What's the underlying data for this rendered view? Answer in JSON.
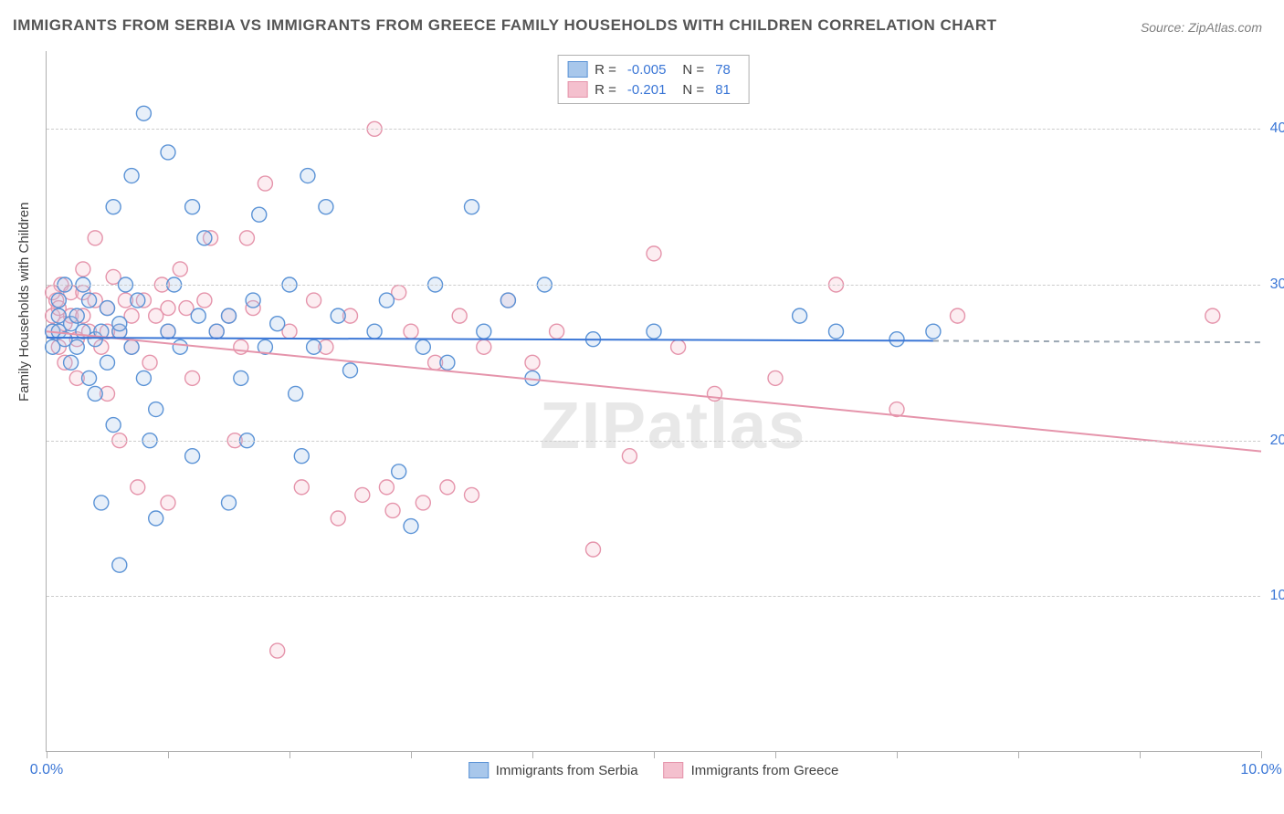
{
  "title": "IMMIGRANTS FROM SERBIA VS IMMIGRANTS FROM GREECE FAMILY HOUSEHOLDS WITH CHILDREN CORRELATION CHART",
  "source": "Source: ZipAtlas.com",
  "watermark": "ZIPatlas",
  "y_axis_title": "Family Households with Children",
  "chart": {
    "type": "scatter",
    "background_color": "#ffffff",
    "grid_color": "#cccccc",
    "axis_color": "#b0b0b0",
    "tick_label_color": "#3a76d6",
    "text_color": "#404040",
    "xlim": [
      0,
      10
    ],
    "ylim": [
      0,
      45
    ],
    "xticks": [
      0,
      1,
      2,
      3,
      4,
      5,
      6,
      7,
      8,
      9,
      10
    ],
    "xtick_labels_shown": {
      "0": "0.0%",
      "10": "10.0%"
    },
    "yticks": [
      10,
      20,
      30,
      40
    ],
    "ytick_labels": [
      "10.0%",
      "20.0%",
      "30.0%",
      "40.0%"
    ],
    "marker_radius": 8,
    "marker_fill_opacity": 0.28,
    "marker_stroke_width": 1.4,
    "line_width": 2
  },
  "series": {
    "serbia": {
      "label": "Immigrants from Serbia",
      "color_stroke": "#5b93d6",
      "color_fill": "#a8c7eb",
      "R": "-0.005",
      "N": "78",
      "regression": {
        "x1": 0,
        "y1": 26.6,
        "x2": 7.3,
        "y2": 26.4,
        "dash_x2": 10,
        "dash_y2": 26.3
      },
      "points": [
        [
          0.05,
          27
        ],
        [
          0.05,
          26
        ],
        [
          0.1,
          27
        ],
        [
          0.1,
          28
        ],
        [
          0.1,
          29
        ],
        [
          0.15,
          30
        ],
        [
          0.15,
          26.5
        ],
        [
          0.2,
          25
        ],
        [
          0.2,
          27.5
        ],
        [
          0.25,
          28
        ],
        [
          0.25,
          26
        ],
        [
          0.3,
          30
        ],
        [
          0.3,
          27
        ],
        [
          0.35,
          24
        ],
        [
          0.35,
          29
        ],
        [
          0.4,
          26.5
        ],
        [
          0.4,
          23
        ],
        [
          0.45,
          27
        ],
        [
          0.5,
          28.5
        ],
        [
          0.5,
          25
        ],
        [
          0.55,
          35
        ],
        [
          0.55,
          21
        ],
        [
          0.6,
          27
        ],
        [
          0.6,
          12
        ],
        [
          0.65,
          30
        ],
        [
          0.7,
          37
        ],
        [
          0.7,
          26
        ],
        [
          0.75,
          29
        ],
        [
          0.8,
          24
        ],
        [
          0.8,
          41
        ],
        [
          0.85,
          20
        ],
        [
          0.9,
          15
        ],
        [
          0.9,
          22
        ],
        [
          1.0,
          27
        ],
        [
          1.0,
          38.5
        ],
        [
          1.05,
          30
        ],
        [
          1.1,
          26
        ],
        [
          1.2,
          35
        ],
        [
          1.2,
          19
        ],
        [
          1.25,
          28
        ],
        [
          1.3,
          33
        ],
        [
          1.4,
          27
        ],
        [
          1.5,
          16
        ],
        [
          1.5,
          28
        ],
        [
          1.6,
          24
        ],
        [
          1.65,
          20
        ],
        [
          1.7,
          29
        ],
        [
          1.75,
          34.5
        ],
        [
          1.8,
          26
        ],
        [
          1.9,
          27.5
        ],
        [
          2.0,
          30
        ],
        [
          2.05,
          23
        ],
        [
          2.1,
          19
        ],
        [
          2.15,
          37
        ],
        [
          2.2,
          26
        ],
        [
          2.3,
          35
        ],
        [
          2.4,
          28
        ],
        [
          2.5,
          24.5
        ],
        [
          2.7,
          27
        ],
        [
          2.8,
          29
        ],
        [
          2.9,
          18
        ],
        [
          3.0,
          14.5
        ],
        [
          3.1,
          26
        ],
        [
          3.2,
          30
        ],
        [
          3.3,
          25
        ],
        [
          3.5,
          35
        ],
        [
          3.6,
          27
        ],
        [
          3.8,
          29
        ],
        [
          4.0,
          24
        ],
        [
          4.1,
          30
        ],
        [
          4.5,
          26.5
        ],
        [
          5.0,
          27
        ],
        [
          6.2,
          28
        ],
        [
          6.5,
          27
        ],
        [
          7.0,
          26.5
        ],
        [
          7.3,
          27
        ],
        [
          0.6,
          27.5
        ],
        [
          0.45,
          16
        ]
      ]
    },
    "greece": {
      "label": "Immigrants from Greece",
      "color_stroke": "#e594ab",
      "color_fill": "#f4c0ce",
      "R": "-0.201",
      "N": "81",
      "regression": {
        "x1": 0,
        "y1": 27.0,
        "x2": 10,
        "y2": 19.3
      },
      "points": [
        [
          0.05,
          28
        ],
        [
          0.05,
          27
        ],
        [
          0.08,
          29
        ],
        [
          0.1,
          26
        ],
        [
          0.1,
          28.5
        ],
        [
          0.12,
          30
        ],
        [
          0.15,
          27.5
        ],
        [
          0.15,
          25
        ],
        [
          0.2,
          28
        ],
        [
          0.2,
          29.5
        ],
        [
          0.25,
          26.5
        ],
        [
          0.25,
          24
        ],
        [
          0.3,
          31
        ],
        [
          0.3,
          28
        ],
        [
          0.35,
          27
        ],
        [
          0.4,
          29
        ],
        [
          0.4,
          33
        ],
        [
          0.45,
          26
        ],
        [
          0.5,
          23
        ],
        [
          0.5,
          28.5
        ],
        [
          0.55,
          30.5
        ],
        [
          0.6,
          27
        ],
        [
          0.6,
          20
        ],
        [
          0.65,
          29
        ],
        [
          0.7,
          26
        ],
        [
          0.7,
          28
        ],
        [
          0.75,
          17
        ],
        [
          0.8,
          29
        ],
        [
          0.85,
          25
        ],
        [
          0.9,
          28
        ],
        [
          0.95,
          30
        ],
        [
          1.0,
          27
        ],
        [
          1.0,
          16
        ],
        [
          1.1,
          31
        ],
        [
          1.15,
          28.5
        ],
        [
          1.2,
          24
        ],
        [
          1.3,
          29
        ],
        [
          1.35,
          33
        ],
        [
          1.4,
          27
        ],
        [
          1.5,
          28
        ],
        [
          1.55,
          20
        ],
        [
          1.6,
          26
        ],
        [
          1.65,
          33
        ],
        [
          1.7,
          28.5
        ],
        [
          1.8,
          36.5
        ],
        [
          1.9,
          6.5
        ],
        [
          2.0,
          27
        ],
        [
          2.1,
          17
        ],
        [
          2.2,
          29
        ],
        [
          2.3,
          26
        ],
        [
          2.4,
          15
        ],
        [
          2.5,
          28
        ],
        [
          2.6,
          16.5
        ],
        [
          2.7,
          40
        ],
        [
          2.8,
          17
        ],
        [
          2.85,
          15.5
        ],
        [
          2.9,
          29.5
        ],
        [
          3.0,
          27
        ],
        [
          3.1,
          16
        ],
        [
          3.2,
          25
        ],
        [
          3.3,
          17
        ],
        [
          3.4,
          28
        ],
        [
          3.5,
          16.5
        ],
        [
          3.6,
          26
        ],
        [
          3.8,
          29
        ],
        [
          4.0,
          25
        ],
        [
          4.2,
          27
        ],
        [
          4.5,
          13
        ],
        [
          4.8,
          19
        ],
        [
          5.0,
          32
        ],
        [
          5.2,
          26
        ],
        [
          5.5,
          23
        ],
        [
          6.0,
          24
        ],
        [
          6.5,
          30
        ],
        [
          7.0,
          22
        ],
        [
          7.5,
          28
        ],
        [
          9.6,
          28
        ],
        [
          0.05,
          29.5
        ],
        [
          0.3,
          29.5
        ],
        [
          0.5,
          27
        ],
        [
          1.0,
          28.5
        ]
      ]
    }
  },
  "legend_top": {
    "r_label": "R =",
    "n_label": "N ="
  }
}
